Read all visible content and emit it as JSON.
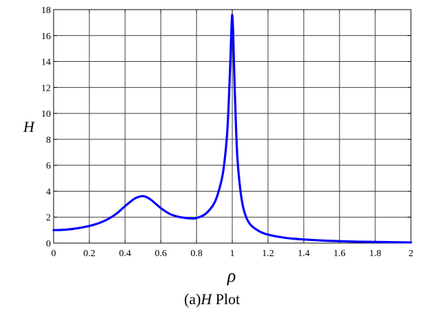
{
  "chart_data": {
    "type": "line",
    "title": "",
    "xlabel": "ρ",
    "ylabel": "H",
    "xlim": [
      0,
      2
    ],
    "ylim": [
      0,
      18
    ],
    "xticks": [
      "0",
      "0.2",
      "0.4",
      "0.6",
      "0.8",
      "1",
      "1.2",
      "1.4",
      "1.6",
      "1.8",
      "2"
    ],
    "yticks": [
      "0",
      "2",
      "4",
      "6",
      "8",
      "10",
      "12",
      "14",
      "16",
      "18"
    ],
    "grid": true,
    "line_color": "#0000ff",
    "series": [
      {
        "x": [
          0,
          0.05,
          0.1,
          0.15,
          0.2,
          0.25,
          0.3,
          0.35,
          0.4,
          0.45,
          0.48,
          0.5,
          0.52,
          0.55,
          0.6,
          0.65,
          0.7,
          0.75,
          0.78,
          0.8,
          0.85,
          0.9,
          0.93,
          0.95,
          0.97,
          0.98,
          0.99,
          0.995,
          1.0,
          1.005,
          1.01,
          1.02,
          1.03,
          1.05,
          1.07,
          1.1,
          1.15,
          1.2,
          1.3,
          1.4,
          1.5,
          1.6,
          1.7,
          1.8,
          1.9,
          2.0
        ],
        "y": [
          1.0,
          1.02,
          1.08,
          1.18,
          1.32,
          1.52,
          1.82,
          2.25,
          2.85,
          3.4,
          3.58,
          3.62,
          3.55,
          3.28,
          2.7,
          2.25,
          2.02,
          1.92,
          1.9,
          1.93,
          2.25,
          3.1,
          4.3,
          5.6,
          8.2,
          10.8,
          14.3,
          16.4,
          17.6,
          16.2,
          13.6,
          9.3,
          6.3,
          3.6,
          2.3,
          1.45,
          0.92,
          0.65,
          0.4,
          0.28,
          0.2,
          0.15,
          0.11,
          0.09,
          0.07,
          0.05
        ]
      }
    ],
    "caption_prefix": "(a)",
    "caption_var": "H",
    "caption_suffix": " Plot"
  }
}
